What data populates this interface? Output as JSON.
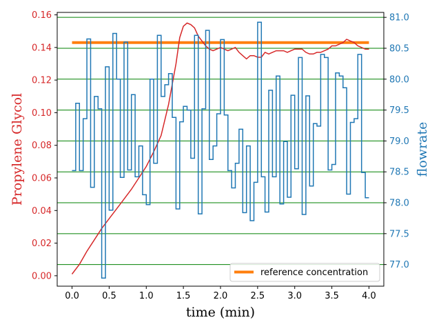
{
  "chart_data": {
    "type": "line",
    "xlabel": "time (min)",
    "ylabel_left": "Propylene Glycol",
    "ylabel_right": "flowrate",
    "xlim": [
      -0.2,
      4.2
    ],
    "xticks": [
      0.0,
      0.5,
      1.0,
      1.5,
      2.0,
      2.5,
      3.0,
      3.5,
      4.0
    ],
    "xtick_labels": [
      "0.0",
      "0.5",
      "1.0",
      "1.5",
      "2.0",
      "2.5",
      "3.0",
      "3.5",
      "4.0"
    ],
    "ylim_left": [
      -0.0064,
      0.1615
    ],
    "yticks_left": [
      0.0,
      0.02,
      0.04,
      0.06,
      0.08,
      0.1,
      0.12,
      0.14,
      0.16
    ],
    "ytick_labels_left": [
      "0.00",
      "0.02",
      "0.04",
      "0.06",
      "0.08",
      "0.10",
      "0.12",
      "0.14",
      "0.16"
    ],
    "ylim_right": [
      76.65,
      81.08
    ],
    "yticks_right": [
      77.0,
      77.5,
      78.0,
      78.5,
      79.0,
      79.5,
      80.0,
      80.5,
      81.0
    ],
    "ytick_labels_right": [
      "77.0",
      "77.5",
      "78.0",
      "78.5",
      "79.0",
      "79.5",
      "80.0",
      "80.5",
      "81.0"
    ],
    "grid": "horizontal lines at right-axis ticks",
    "legend": {
      "position": "lower-right",
      "entries": [
        "reference concentration"
      ]
    },
    "colors": {
      "concentration": "#d62728",
      "flowrate": "#1f77b4",
      "reference": "#ff7f0e",
      "grid": "#008000",
      "left_axis": "#d62728",
      "right_axis": "#1f77b4"
    },
    "series": [
      {
        "name": "reference concentration",
        "axis": "left",
        "x": [
          0.0,
          4.0
        ],
        "y": [
          0.143,
          0.143
        ]
      },
      {
        "axis": "left",
        "style": "line",
        "x": [
          0.0,
          0.1,
          0.2,
          0.3,
          0.4,
          0.5,
          0.6,
          0.7,
          0.8,
          0.9,
          1.0,
          1.1,
          1.2,
          1.3,
          1.4,
          1.45,
          1.5,
          1.55,
          1.6,
          1.65,
          1.7,
          1.75,
          1.8,
          1.85,
          1.9,
          1.95,
          2.0,
          2.05,
          2.1,
          2.15,
          2.2,
          2.25,
          2.3,
          2.35,
          2.4,
          2.45,
          2.5,
          2.55,
          2.6,
          2.65,
          2.7,
          2.75,
          2.8,
          2.85,
          2.9,
          2.95,
          3.0,
          3.05,
          3.1,
          3.15,
          3.2,
          3.25,
          3.3,
          3.35,
          3.4,
          3.45,
          3.5,
          3.55,
          3.6,
          3.65,
          3.7,
          3.75,
          3.8,
          3.85,
          3.9,
          3.95,
          4.0
        ],
        "y": [
          0.001,
          0.007,
          0.015,
          0.022,
          0.029,
          0.035,
          0.041,
          0.047,
          0.053,
          0.06,
          0.067,
          0.076,
          0.086,
          0.105,
          0.13,
          0.146,
          0.153,
          0.155,
          0.154,
          0.152,
          0.147,
          0.144,
          0.141,
          0.139,
          0.138,
          0.139,
          0.14,
          0.139,
          0.138,
          0.139,
          0.14,
          0.137,
          0.135,
          0.133,
          0.135,
          0.135,
          0.134,
          0.134,
          0.137,
          0.136,
          0.137,
          0.138,
          0.138,
          0.138,
          0.137,
          0.138,
          0.139,
          0.139,
          0.139,
          0.137,
          0.136,
          0.136,
          0.137,
          0.137,
          0.138,
          0.139,
          0.141,
          0.141,
          0.142,
          0.143,
          0.145,
          0.144,
          0.143,
          0.141,
          0.14,
          0.139,
          0.139
        ]
      },
      {
        "axis": "right",
        "style": "step",
        "x": [
          0.0,
          0.05,
          0.1,
          0.15,
          0.2,
          0.25,
          0.3,
          0.35,
          0.4,
          0.45,
          0.5,
          0.55,
          0.6,
          0.65,
          0.7,
          0.75,
          0.8,
          0.85,
          0.9,
          0.95,
          1.0,
          1.05,
          1.1,
          1.15,
          1.2,
          1.25,
          1.3,
          1.35,
          1.4,
          1.45,
          1.5,
          1.55,
          1.6,
          1.65,
          1.7,
          1.75,
          1.8,
          1.85,
          1.9,
          1.95,
          2.0,
          2.05,
          2.1,
          2.15,
          2.2,
          2.25,
          2.3,
          2.35,
          2.4,
          2.45,
          2.5,
          2.55,
          2.6,
          2.65,
          2.7,
          2.75,
          2.8,
          2.85,
          2.9,
          2.95,
          3.0,
          3.05,
          3.1,
          3.15,
          3.2,
          3.25,
          3.3,
          3.35,
          3.4,
          3.45,
          3.5,
          3.55,
          3.6,
          3.65,
          3.7,
          3.75,
          3.8,
          3.85,
          3.9,
          3.95,
          4.0
        ],
        "y": [
          78.52,
          79.61,
          78.52,
          79.36,
          80.65,
          78.25,
          79.72,
          79.52,
          76.78,
          80.2,
          77.88,
          80.74,
          80.0,
          78.41,
          80.6,
          78.53,
          79.75,
          78.42,
          78.92,
          78.13,
          77.97,
          80.0,
          78.64,
          80.71,
          79.72,
          79.91,
          80.09,
          79.38,
          77.9,
          79.31,
          79.56,
          79.5,
          78.72,
          80.71,
          77.82,
          79.52,
          80.79,
          78.7,
          78.92,
          79.44,
          80.64,
          79.42,
          78.52,
          78.24,
          78.64,
          79.19,
          77.84,
          78.92,
          77.71,
          78.33,
          80.92,
          78.42,
          77.85,
          79.82,
          78.42,
          80.05,
          77.98,
          78.99,
          78.09,
          79.74,
          78.55,
          80.35,
          77.81,
          79.73,
          78.27,
          79.28,
          79.24,
          80.4,
          80.35,
          78.53,
          78.62,
          80.1,
          80.05,
          79.86,
          78.14,
          79.3,
          79.36,
          80.4,
          78.49,
          78.08,
          78.08
        ]
      }
    ]
  }
}
